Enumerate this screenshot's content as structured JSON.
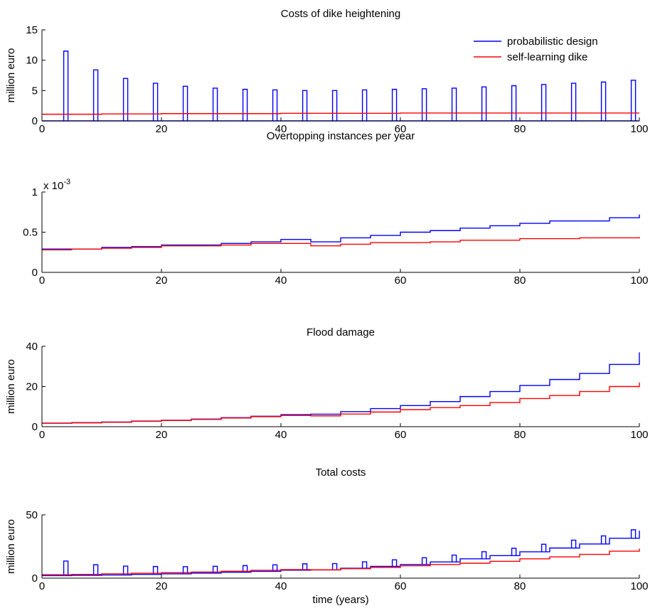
{
  "colors": {
    "blue": "#0000ff",
    "red": "#ff0000",
    "axis": "#000000"
  },
  "chart_data": [
    {
      "type": "line",
      "title": "Costs of dike heightening",
      "xlabel": "",
      "ylabel": "million euro",
      "xlim": [
        0,
        100
      ],
      "ylim": [
        0,
        15
      ],
      "xticks": [
        "0",
        "20",
        "40",
        "60",
        "80",
        "100"
      ],
      "yticks": [
        "0",
        "5",
        "10",
        "15"
      ],
      "legend": {
        "placement": "top-right",
        "entries": [
          "probabilistic design",
          "self-learning dike"
        ]
      },
      "series": [
        {
          "name": "probabilistic design",
          "color": "#0000ff",
          "pulse_x": [
            4,
            9,
            14,
            19,
            24,
            29,
            34,
            39,
            44,
            49,
            54,
            59,
            64,
            69,
            74,
            79,
            84,
            89,
            94,
            99
          ],
          "pulse_values": [
            11.5,
            8.4,
            7.0,
            6.2,
            5.7,
            5.4,
            5.2,
            5.1,
            5.0,
            5.0,
            5.1,
            5.2,
            5.3,
            5.4,
            5.6,
            5.8,
            6.0,
            6.2,
            6.4,
            6.7
          ]
        },
        {
          "name": "self-learning dike",
          "color": "#ff0000",
          "x": [
            0,
            10,
            20,
            30,
            40,
            50,
            60,
            70,
            80,
            90,
            100
          ],
          "values": [
            1.1,
            1.15,
            1.2,
            1.2,
            1.25,
            1.25,
            1.3,
            1.3,
            1.3,
            1.3,
            1.3
          ]
        }
      ]
    },
    {
      "type": "line",
      "title": "Overtopping instances per year",
      "xlabel": "",
      "ylabel": "",
      "exponent_label": "x 10",
      "exponent": "-3",
      "xlim": [
        0,
        100
      ],
      "ylim": [
        0,
        1
      ],
      "xticks": [
        "0",
        "20",
        "40",
        "60",
        "80",
        "100"
      ],
      "yticks": [
        "0",
        "0.5",
        "1"
      ],
      "series": [
        {
          "color": "#0000ff",
          "x": [
            0,
            5,
            10,
            15,
            20,
            25,
            30,
            35,
            40,
            45,
            50,
            55,
            60,
            65,
            70,
            75,
            80,
            85,
            90,
            95,
            100
          ],
          "values": [
            0.29,
            0.29,
            0.31,
            0.32,
            0.34,
            0.34,
            0.36,
            0.38,
            0.41,
            0.38,
            0.43,
            0.46,
            0.5,
            0.52,
            0.55,
            0.58,
            0.61,
            0.64,
            0.64,
            0.68,
            0.72
          ]
        },
        {
          "color": "#ff0000",
          "x": [
            0,
            5,
            10,
            15,
            20,
            25,
            30,
            35,
            40,
            45,
            50,
            55,
            60,
            65,
            70,
            75,
            80,
            85,
            90,
            95,
            100
          ],
          "values": [
            0.28,
            0.29,
            0.3,
            0.31,
            0.33,
            0.33,
            0.34,
            0.36,
            0.36,
            0.33,
            0.35,
            0.37,
            0.37,
            0.38,
            0.4,
            0.4,
            0.42,
            0.42,
            0.43,
            0.43,
            0.44
          ]
        }
      ]
    },
    {
      "type": "line",
      "title": "Flood damage",
      "xlabel": "",
      "ylabel": "million euro",
      "xlim": [
        0,
        100
      ],
      "ylim": [
        0,
        40
      ],
      "xticks": [
        "0",
        "20",
        "40",
        "60",
        "80",
        "100"
      ],
      "yticks": [
        "0",
        "20",
        "40"
      ],
      "series": [
        {
          "color": "#0000ff",
          "x": [
            0,
            5,
            10,
            15,
            20,
            25,
            30,
            35,
            40,
            45,
            50,
            55,
            60,
            65,
            70,
            75,
            80,
            85,
            90,
            95,
            100
          ],
          "values": [
            1.8,
            2.0,
            2.3,
            2.8,
            3.2,
            3.8,
            4.5,
            5.2,
            6.0,
            6.2,
            7.5,
            9.0,
            10.5,
            12.5,
            15.0,
            17.5,
            20.5,
            23.5,
            26.5,
            31.0,
            37.0
          ]
        },
        {
          "color": "#ff0000",
          "x": [
            0,
            5,
            10,
            15,
            20,
            25,
            30,
            35,
            40,
            45,
            50,
            55,
            60,
            65,
            70,
            75,
            80,
            85,
            90,
            95,
            100
          ],
          "values": [
            1.7,
            1.9,
            2.2,
            2.7,
            3.1,
            3.6,
            4.3,
            5.0,
            5.6,
            5.4,
            6.3,
            7.3,
            8.5,
            9.5,
            10.5,
            12.0,
            14.0,
            15.5,
            17.5,
            20.0,
            22.0
          ]
        }
      ]
    },
    {
      "type": "line",
      "title": "Total costs",
      "xlabel": "time (years)",
      "ylabel": "million euro",
      "xlim": [
        0,
        100
      ],
      "ylim": [
        0,
        50
      ],
      "xticks": [
        "0",
        "20",
        "40",
        "60",
        "80",
        "100"
      ],
      "yticks": [
        "0",
        "50"
      ],
      "series": [
        {
          "color": "#0000ff",
          "x": [
            0,
            5,
            10,
            15,
            20,
            25,
            30,
            35,
            40,
            45,
            50,
            55,
            60,
            65,
            70,
            75,
            80,
            85,
            90,
            95,
            100
          ],
          "values": [
            2.0,
            2.2,
            2.5,
            3.0,
            3.4,
            4.0,
            4.7,
            5.4,
            6.3,
            6.5,
            7.8,
            9.3,
            10.8,
            12.8,
            15.3,
            17.8,
            20.8,
            23.8,
            27.0,
            31.5,
            37.5
          ],
          "pulse_x": [
            4,
            9,
            14,
            19,
            24,
            29,
            34,
            39,
            44,
            49,
            54,
            59,
            64,
            69,
            74,
            79,
            84,
            89,
            94,
            99
          ],
          "pulse_values": [
            11.5,
            8.4,
            7.0,
            6.2,
            5.7,
            5.4,
            5.2,
            5.1,
            5.0,
            5.0,
            5.1,
            5.2,
            5.3,
            5.4,
            5.6,
            5.8,
            6.0,
            6.2,
            6.4,
            6.7
          ]
        },
        {
          "color": "#ff0000",
          "x": [
            0,
            5,
            10,
            15,
            20,
            25,
            30,
            35,
            40,
            45,
            50,
            55,
            60,
            65,
            70,
            75,
            80,
            85,
            90,
            95,
            100
          ],
          "values": [
            2.8,
            3.0,
            3.4,
            3.9,
            4.3,
            4.8,
            5.5,
            6.2,
            6.8,
            6.6,
            7.5,
            8.5,
            9.8,
            10.8,
            11.8,
            13.3,
            15.3,
            16.8,
            18.8,
            21.3,
            23.3
          ]
        }
      ]
    }
  ]
}
